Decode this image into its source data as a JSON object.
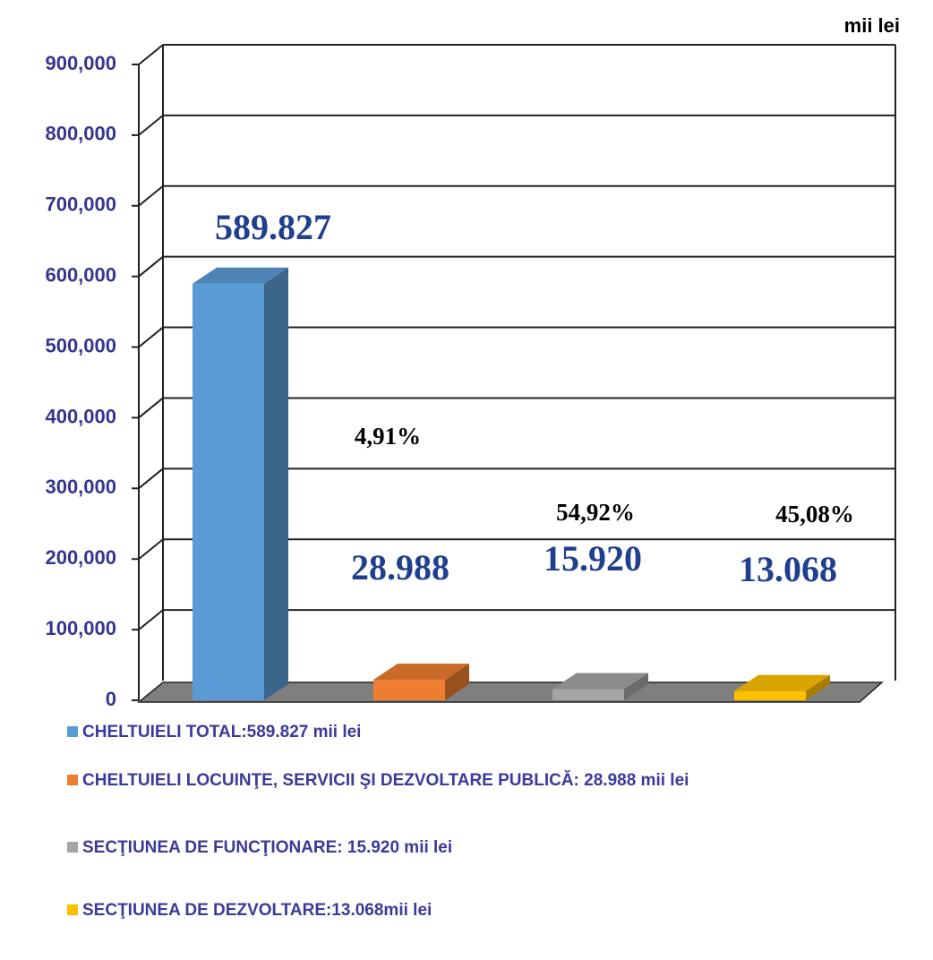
{
  "chart_data": {
    "type": "bar3d",
    "unit_label": "mii lei",
    "categories": [
      "CHELTUIELI TOTAL:589.827 mii lei",
      "CHELTUIELI LOCUINŢE, SERVICII ŞI DEZVOLTARE PUBLICĂ: 28.988 mii lei",
      "SECŢIUNEA DE FUNCŢIONARE: 15.920 mii lei",
      "SECŢIUNEA DE DEZVOLTARE:13.068mii lei"
    ],
    "values": [
      589827,
      28988,
      15920,
      13068
    ],
    "value_labels": [
      "589.827",
      "28.988",
      "15.920",
      "13.068"
    ],
    "colors": [
      "#5b9bd5",
      "#ed7d31",
      "#a5a5a5",
      "#ffc000"
    ],
    "annotations": [
      "4,91%",
      "54,92%",
      "45,08%"
    ],
    "ylim": [
      0,
      900000
    ],
    "yticks": [
      0,
      {
        "value": 100000,
        "label": "100,000"
      },
      {
        "value": 200000,
        "label": "200,000"
      },
      {
        "value": 300000,
        "label": "300,000"
      },
      {
        "value": 400000,
        "label": "400,000"
      },
      {
        "value": 500000,
        "label": "500,000"
      },
      {
        "value": 600000,
        "label": "600,000"
      },
      {
        "value": 700000,
        "label": "700,000"
      },
      {
        "value": 800000,
        "label": "800,000"
      },
      {
        "value": 900000,
        "label": "900,000"
      }
    ],
    "grid": true
  }
}
